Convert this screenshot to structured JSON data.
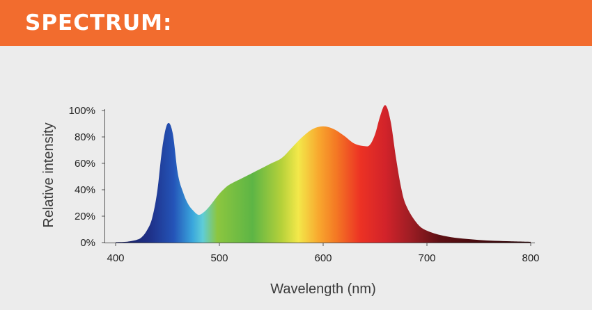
{
  "header": {
    "title": "SPECTRUM:",
    "color": "#f26c2e"
  },
  "chart_data": {
    "type": "area",
    "title": "",
    "xlabel": "Wavelength (nm)",
    "ylabel": "Relative intensity",
    "xlim": [
      400,
      800
    ],
    "ylim": [
      0,
      100
    ],
    "x_ticks": [
      "400",
      "500",
      "600",
      "700",
      "800"
    ],
    "y_ticks": [
      "0%",
      "20%",
      "40%",
      "60%",
      "80%",
      "100%"
    ],
    "grid": false,
    "legend": "none",
    "series": [
      {
        "x": [
          400,
          410,
          420,
          425,
          430,
          435,
          440,
          445,
          450,
          455,
          460,
          465,
          470,
          475,
          480,
          485,
          490,
          495,
          500,
          505,
          510,
          520,
          530,
          540,
          550,
          560,
          570,
          580,
          590,
          600,
          610,
          620,
          630,
          640,
          645,
          650,
          655,
          660,
          665,
          670,
          675,
          680,
          690,
          700,
          720,
          750,
          780,
          800
        ],
        "y": [
          0.3,
          0.6,
          2,
          4,
          9,
          18,
          38,
          72,
          90,
          83,
          52,
          38,
          29,
          24,
          21,
          23,
          27,
          32,
          37,
          41,
          44,
          48,
          52,
          56,
          60,
          64,
          72,
          80,
          86,
          88,
          86,
          81,
          75,
          73,
          74,
          82,
          96,
          104,
          92,
          65,
          42,
          28,
          15,
          9,
          4.5,
          2,
          1,
          0.6
        ]
      }
    ]
  }
}
